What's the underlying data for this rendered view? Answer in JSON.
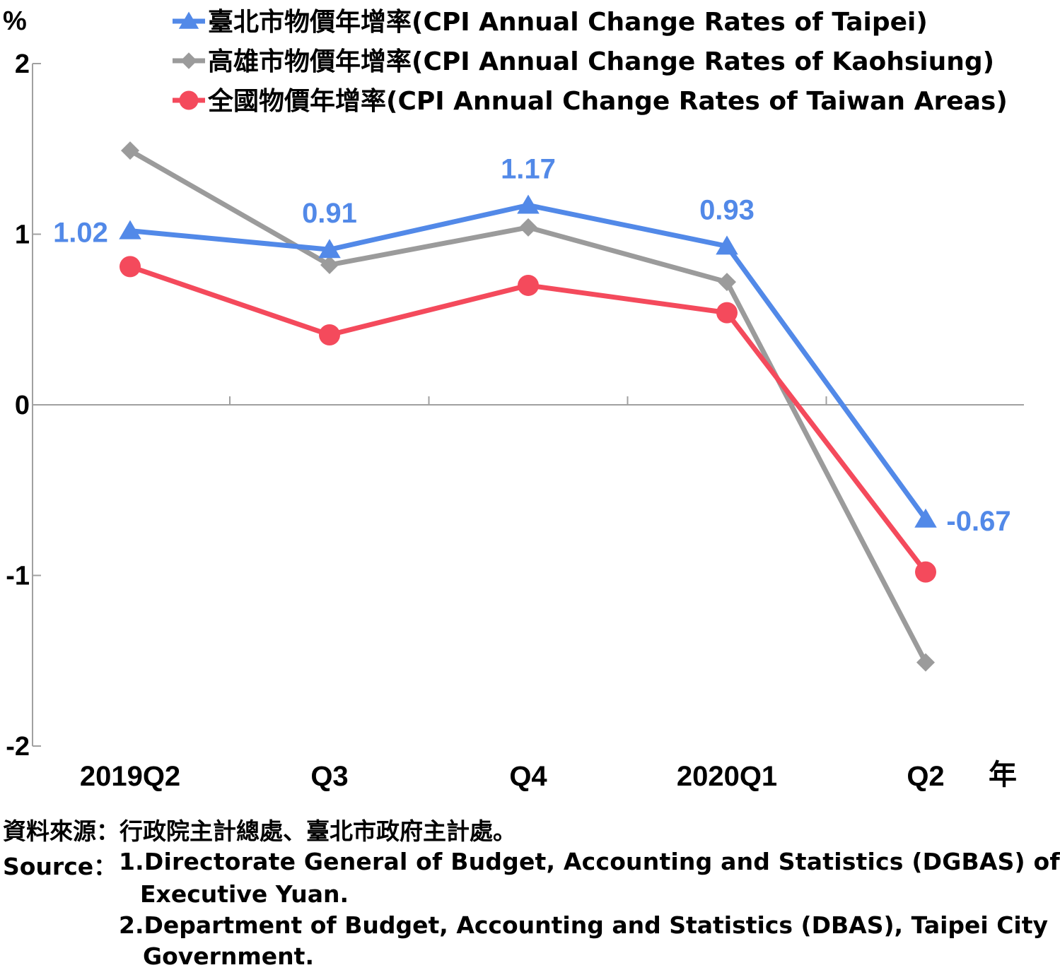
{
  "chart_data": {
    "type": "line",
    "ylabel": "%",
    "xlabel": "年",
    "ylim": [
      -2,
      2
    ],
    "yticks": [
      2,
      1,
      0,
      -1,
      -2
    ],
    "categories": [
      "2019Q2",
      "Q3",
      "Q4",
      "2020Q1",
      "Q2"
    ],
    "series": [
      {
        "name": "臺北市物價年增率(CPI Annual Change Rates of Taipei)",
        "color": "#5289e8",
        "marker": "triangle",
        "values": [
          1.02,
          0.91,
          1.17,
          0.93,
          -0.67
        ],
        "labels": [
          "1.02",
          "0.91",
          "1.17",
          "0.93",
          "-0.67"
        ]
      },
      {
        "name": "高雄市物價年增率(CPI Annual Change Rates of Kaohsiung)",
        "color": "#9b9b9b",
        "marker": "diamond",
        "values": [
          1.49,
          0.82,
          1.04,
          0.72,
          -1.51
        ]
      },
      {
        "name": "全國物價年增率(CPI Annual Change Rates of Taiwan Areas)",
        "color": "#f44a5c",
        "marker": "circle",
        "values": [
          0.81,
          0.41,
          0.7,
          0.54,
          -0.98
        ]
      }
    ],
    "legend_position": "top-right",
    "grid": false
  },
  "source": {
    "zh": "資料來源：行政院主計總處、臺北市政府主計處。",
    "en_prefix": "Source：",
    "en_1a": "1.Directorate General of Budget, Accounting and Statistics (DGBAS) of",
    "en_1b": "Executive Yuan.",
    "en_2a": "2.Department of Budget, Accounting and Statistics (DBAS), Taipei City",
    "en_2b": "Government."
  }
}
